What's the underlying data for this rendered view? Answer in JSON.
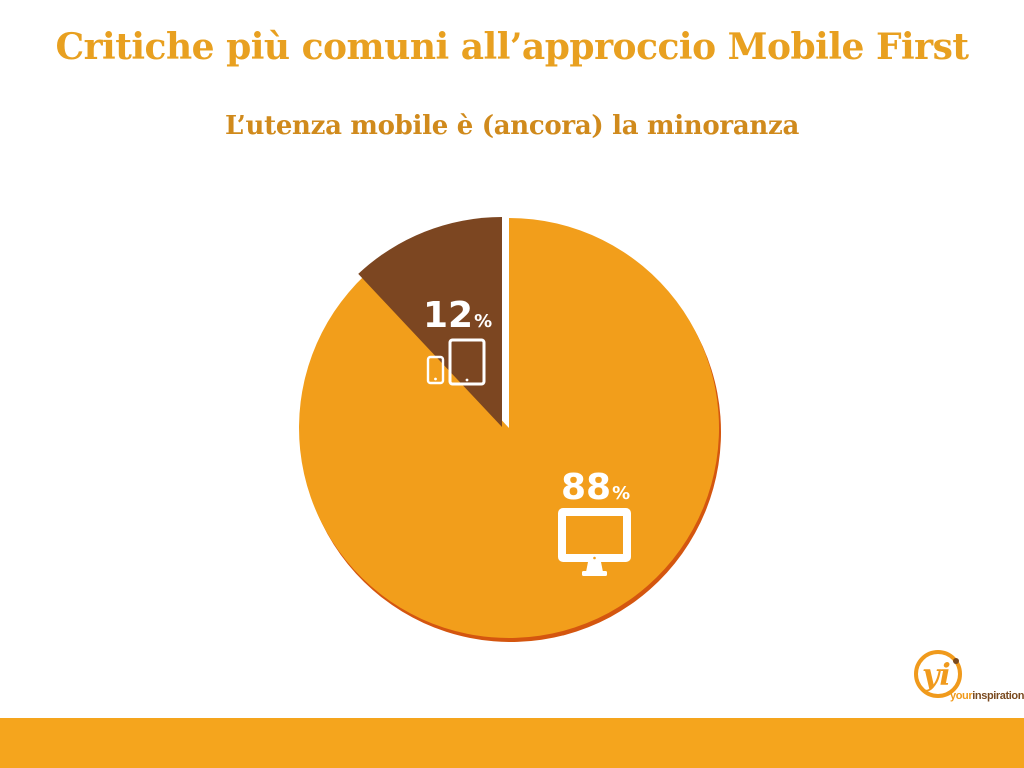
{
  "slide": {
    "title": "Critiche più comuni all’approccio Mobile First",
    "subtitle": "L’utenza mobile è (ancora) la minoranza"
  },
  "chart_data": {
    "type": "pie",
    "title": "L’utenza mobile è (ancora) la minoranza",
    "slices": [
      {
        "value": 88,
        "label": "88",
        "unit": "%",
        "icon": "desktop-monitor-icon",
        "color": "#f29e1b"
      },
      {
        "value": 12,
        "label": "12",
        "unit": "%",
        "icon": "phone-tablet-icon",
        "color": "#7c4621"
      }
    ],
    "start_angle_deg": 0,
    "direction": "clockwise"
  },
  "colors": {
    "title": "#e8a020",
    "subtitle": "#d08a1c",
    "desktop_slice": "#f29e1b",
    "mobile_slice": "#7c4621",
    "slice_shadow": "#d4560f",
    "footer_bar": "#f5a51d",
    "logo_orange": "#f09a1c",
    "logo_brown": "#7a4a1f"
  },
  "logo": {
    "monogram": "yi",
    "text_your": "your",
    "text_inspiration": "inspiration"
  }
}
